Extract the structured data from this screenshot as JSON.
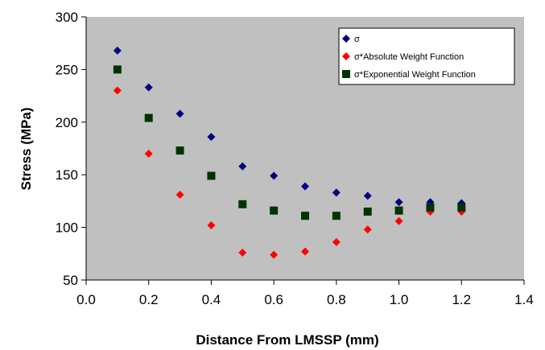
{
  "chart_data": {
    "type": "scatter",
    "title": "",
    "xlabel": "Distance From LMSSP (mm)",
    "ylabel": "Stress (MPa)",
    "xlim": [
      0.0,
      1.4
    ],
    "ylim": [
      50,
      300
    ],
    "x_ticks": [
      "0.0",
      "0.2",
      "0.4",
      "0.6",
      "0.8",
      "1.0",
      "1.2",
      "1.4"
    ],
    "y_ticks": [
      "50",
      "100",
      "150",
      "200",
      "250",
      "300"
    ],
    "grid": false,
    "legend_position": "top-right",
    "plot_background": "#c0c0c0",
    "series": [
      {
        "name": "σ",
        "marker": "diamond",
        "color": "#000080",
        "x": [
          0.1,
          0.2,
          0.3,
          0.4,
          0.5,
          0.6,
          0.7,
          0.8,
          0.9,
          1.0,
          1.1,
          1.2
        ],
        "y": [
          268,
          233,
          208,
          186,
          158,
          149,
          139,
          133,
          130,
          124,
          124,
          123
        ]
      },
      {
        "name": "σ*Absolute Weight Function",
        "marker": "diamond",
        "color": "#ff0000",
        "x": [
          0.1,
          0.2,
          0.3,
          0.4,
          0.5,
          0.6,
          0.7,
          0.8,
          0.9,
          1.0,
          1.1,
          1.2
        ],
        "y": [
          230,
          170,
          131,
          102,
          76,
          74,
          77,
          86,
          98,
          106,
          115,
          115
        ]
      },
      {
        "name": "σ*Exponential Weight Function",
        "marker": "square",
        "color": "#003300",
        "x": [
          0.1,
          0.2,
          0.3,
          0.4,
          0.5,
          0.6,
          0.7,
          0.8,
          0.9,
          1.0,
          1.1,
          1.2
        ],
        "y": [
          250,
          204,
          173,
          149,
          122,
          116,
          111,
          111,
          115,
          116,
          119,
          119
        ]
      }
    ]
  }
}
